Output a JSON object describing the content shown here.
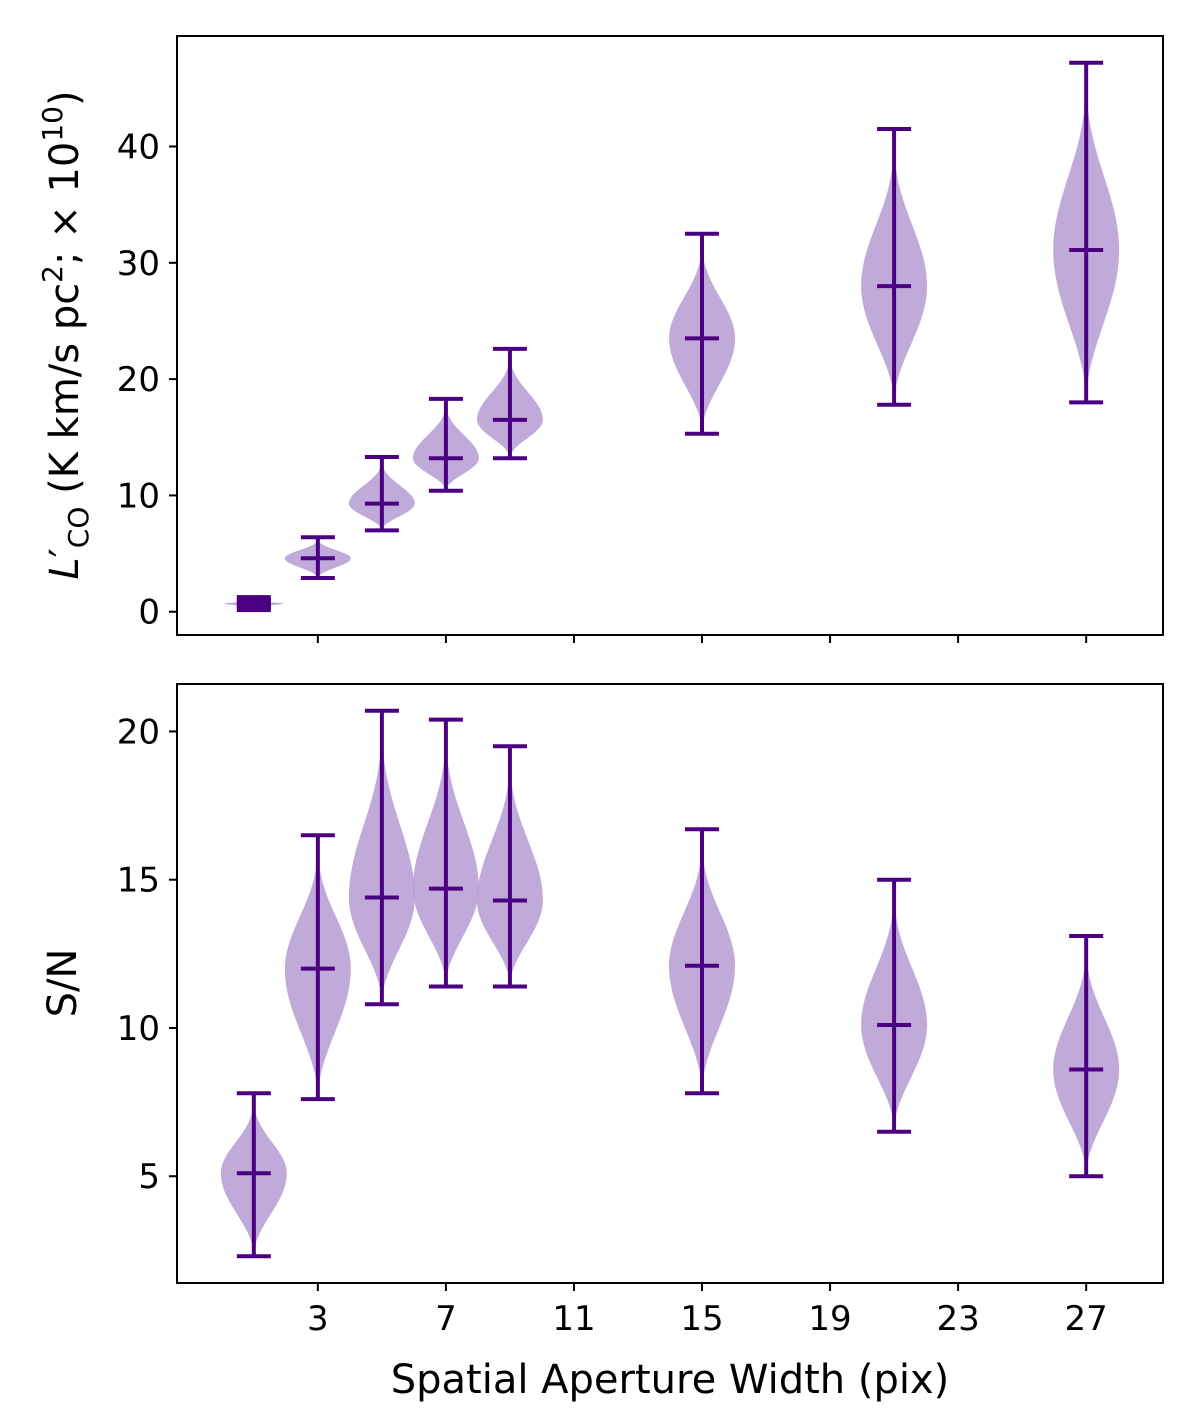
{
  "chart_data": {
    "type": "violin",
    "xlabel": "Spatial Aperture Width (pix)",
    "x_tick_labels": [
      "3",
      "7",
      "11",
      "15",
      "19",
      "23",
      "27"
    ],
    "x_ticks": [
      3,
      7,
      11,
      15,
      19,
      23,
      27
    ],
    "xlim": [
      -1.4,
      29.4
    ],
    "violin_color": "#b59bd3",
    "line_color": "#4b0082",
    "panels": [
      {
        "name": "luminosity",
        "ylabel_main": "L",
        "ylabel_prime": "′",
        "ylabel_sub": "CO",
        "ylabel_rest": " (K km/s pc",
        "ylabel_sup": "2",
        "ylabel_rest2": ";  × 10",
        "ylabel_sup2": "10",
        "ylabel_close": ")",
        "y_tick_labels": [
          "0",
          "10",
          "20",
          "30",
          "40"
        ],
        "y_ticks": [
          0,
          10,
          20,
          30,
          40
        ],
        "ylim": [
          -2,
          49.5
        ],
        "violins": [
          {
            "x": 1,
            "min": 0.4,
            "median": 0.7,
            "max": 1.0,
            "width": 0.9
          },
          {
            "x": 3,
            "min": 2.9,
            "median": 4.6,
            "max": 6.4,
            "width": 1.0
          },
          {
            "x": 5,
            "min": 7.0,
            "median": 9.3,
            "max": 13.3,
            "width": 1.0
          },
          {
            "x": 7,
            "min": 10.4,
            "median": 13.2,
            "max": 18.3,
            "width": 1.0
          },
          {
            "x": 9,
            "min": 13.2,
            "median": 16.5,
            "max": 22.6,
            "width": 1.0
          },
          {
            "x": 15,
            "min": 15.3,
            "median": 23.5,
            "max": 32.5,
            "width": 1.0
          },
          {
            "x": 21,
            "min": 17.8,
            "median": 28.0,
            "max": 41.5,
            "width": 1.0
          },
          {
            "x": 27,
            "min": 18.0,
            "median": 31.1,
            "max": 47.2,
            "width": 1.0
          }
        ]
      },
      {
        "name": "signal-to-noise",
        "ylabel": "S/N",
        "y_tick_labels": [
          "5",
          "10",
          "15",
          "20"
        ],
        "y_ticks": [
          5,
          10,
          15,
          20
        ],
        "ylim": [
          1.4,
          21.6
        ],
        "violins": [
          {
            "x": 1,
            "min": 2.3,
            "median": 5.1,
            "max": 7.8,
            "width": 1.0
          },
          {
            "x": 3,
            "min": 7.6,
            "median": 12.0,
            "max": 16.5,
            "width": 1.0
          },
          {
            "x": 5,
            "min": 10.8,
            "median": 14.4,
            "max": 20.7,
            "width": 1.0
          },
          {
            "x": 7,
            "min": 11.4,
            "median": 14.7,
            "max": 20.4,
            "width": 1.0
          },
          {
            "x": 9,
            "min": 11.4,
            "median": 14.3,
            "max": 19.5,
            "width": 1.0
          },
          {
            "x": 15,
            "min": 7.8,
            "median": 12.1,
            "max": 16.7,
            "width": 1.0
          },
          {
            "x": 21,
            "min": 6.5,
            "median": 10.1,
            "max": 15.0,
            "width": 1.0
          },
          {
            "x": 27,
            "min": 5.0,
            "median": 8.6,
            "max": 13.1,
            "width": 1.0
          }
        ]
      }
    ]
  }
}
